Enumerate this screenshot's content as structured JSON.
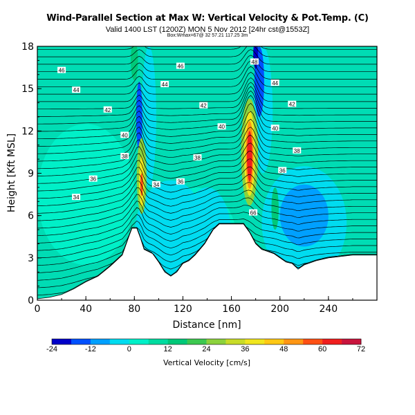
{
  "header": {
    "title": "Wind-Parallel Section at Max W: Vertical Velocity & Pot.Temp. (C)",
    "subtitle": "Valid 1400 LST (1200Z) MON 5 Nov 2012 [24hr cst@1553Z]",
    "subtitle2": "Box:Wmax=67@ 32 57.21 117.25 3m"
  },
  "chart_data": {
    "type": "heatmap",
    "xlabel": "Distance [nm]",
    "ylabel": "Height [Kft MSL]",
    "xlim": [
      0,
      280
    ],
    "ylim": [
      0,
      18
    ],
    "x_ticks": [
      0,
      40,
      80,
      120,
      160,
      200,
      240
    ],
    "y_ticks": [
      0,
      3,
      6,
      9,
      12,
      15,
      18
    ],
    "colorbar": {
      "label": "Vertical Velocity [cm/s]",
      "ticks": [
        -24,
        -12,
        0,
        12,
        24,
        36,
        48,
        60,
        72
      ],
      "colors": [
        "#0000c8",
        "#0050ff",
        "#00a0ff",
        "#00dcf0",
        "#00f0c8",
        "#00dca0",
        "#00c878",
        "#3cc850",
        "#8cd23c",
        "#c8dc28",
        "#f0e61e",
        "#ffc814",
        "#ff9614",
        "#ff5014",
        "#f01e1e",
        "#c8143c"
      ]
    },
    "terrain": [
      [
        0,
        0.1
      ],
      [
        10,
        0.2
      ],
      [
        20,
        0.4
      ],
      [
        30,
        0.8
      ],
      [
        40,
        1.3
      ],
      [
        50,
        1.7
      ],
      [
        60,
        2.4
      ],
      [
        70,
        3.2
      ],
      [
        75,
        4.4
      ],
      [
        78,
        5.1
      ],
      [
        82,
        5.1
      ],
      [
        85,
        4.4
      ],
      [
        88,
        3.6
      ],
      [
        95,
        3.3
      ],
      [
        100,
        2.7
      ],
      [
        105,
        2.0
      ],
      [
        110,
        1.7
      ],
      [
        115,
        2.0
      ],
      [
        120,
        2.6
      ],
      [
        125,
        2.8
      ],
      [
        130,
        3.2
      ],
      [
        138,
        4.0
      ],
      [
        145,
        5.0
      ],
      [
        150,
        5.4
      ],
      [
        160,
        5.4
      ],
      [
        170,
        5.4
      ],
      [
        175,
        4.8
      ],
      [
        180,
        4.0
      ],
      [
        185,
        3.6
      ],
      [
        195,
        3.3
      ],
      [
        200,
        3.0
      ],
      [
        205,
        2.7
      ],
      [
        210,
        2.6
      ],
      [
        215,
        2.2
      ],
      [
        220,
        2.5
      ],
      [
        230,
        2.8
      ],
      [
        240,
        3.0
      ],
      [
        260,
        3.2
      ],
      [
        280,
        3.2
      ]
    ],
    "theta_labels": [
      {
        "text": "46",
        "x": 20,
        "y": 16.3
      },
      {
        "text": "44",
        "x": 32,
        "y": 14.9
      },
      {
        "text": "42",
        "x": 58,
        "y": 13.5
      },
      {
        "text": "40",
        "x": 72,
        "y": 11.7
      },
      {
        "text": "38",
        "x": 72,
        "y": 10.2
      },
      {
        "text": "36",
        "x": 46,
        "y": 8.6
      },
      {
        "text": "34",
        "x": 32,
        "y": 7.3
      },
      {
        "text": "46",
        "x": 118,
        "y": 16.6
      },
      {
        "text": "44",
        "x": 105,
        "y": 15.3
      },
      {
        "text": "42",
        "x": 137,
        "y": 13.8
      },
      {
        "text": "40",
        "x": 152,
        "y": 12.3
      },
      {
        "text": "38",
        "x": 132,
        "y": 10.1
      },
      {
        "text": "36",
        "x": 118,
        "y": 8.4
      },
      {
        "text": "34",
        "x": 98,
        "y": 8.2
      },
      {
        "text": "48",
        "x": 179,
        "y": 16.9
      },
      {
        "text": "44",
        "x": 196,
        "y": 15.4
      },
      {
        "text": "42",
        "x": 210,
        "y": 13.9
      },
      {
        "text": "40",
        "x": 196,
        "y": 12.2
      },
      {
        "text": "38",
        "x": 214,
        "y": 10.6
      },
      {
        "text": "36",
        "x": 202,
        "y": 9.2
      },
      {
        "text": "66",
        "x": 178,
        "y": 6.2
      }
    ]
  }
}
